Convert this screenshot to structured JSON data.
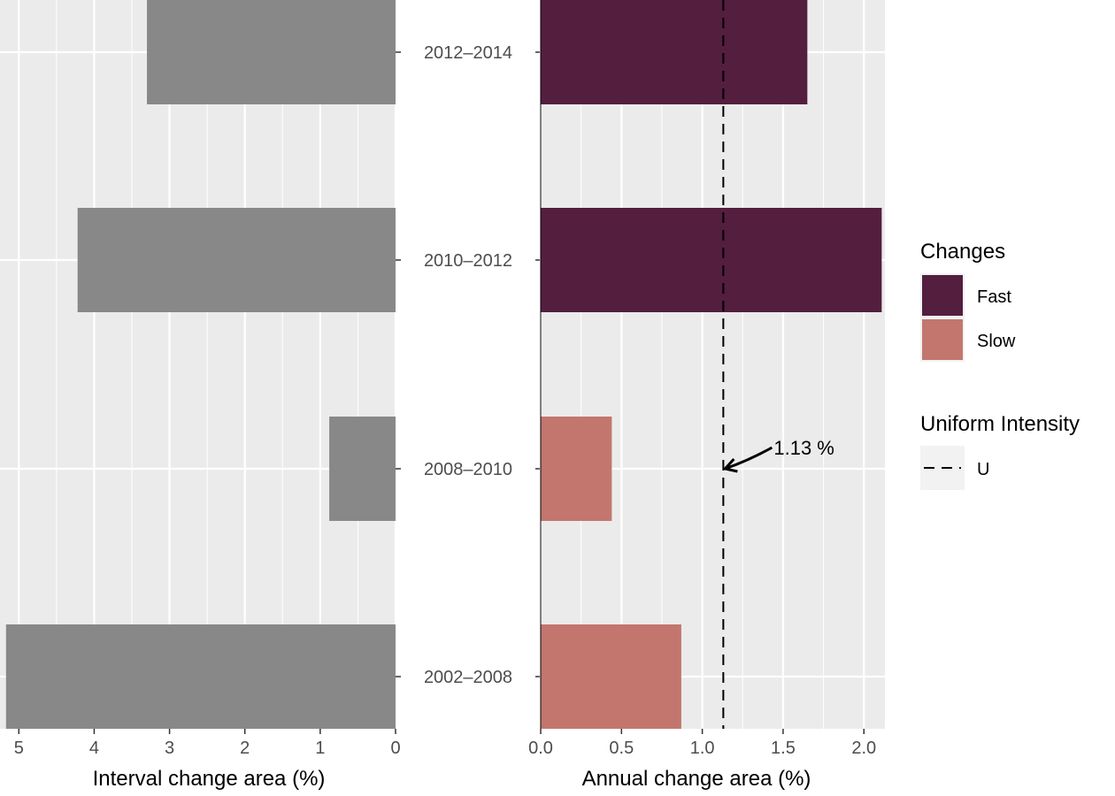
{
  "chart_data": [
    {
      "type": "bar",
      "orientation": "horizontal",
      "x_reversed": true,
      "categories": [
        "2002–2008",
        "2008–2010",
        "2010–2012",
        "2012–2014"
      ],
      "values": [
        5.17,
        0.88,
        4.22,
        3.3
      ],
      "xlabel": "Interval change area (%)",
      "ylabel": "",
      "xlim": [
        5.25,
        0
      ],
      "xticks": [
        5,
        4,
        3,
        2,
        1,
        0
      ],
      "xtick_labels": [
        "5",
        "4",
        "3",
        "2",
        "1",
        "0"
      ],
      "bar_color": "#888888",
      "grid": true
    },
    {
      "type": "bar",
      "orientation": "horizontal",
      "categories": [
        "2002–2008",
        "2008–2010",
        "2010–2012",
        "2012–2014"
      ],
      "values": [
        0.87,
        0.44,
        2.11,
        1.65
      ],
      "groups": [
        "Slow",
        "Slow",
        "Fast",
        "Fast"
      ],
      "xlabel": "Annual change area (%)",
      "ylabel": "",
      "xlim": [
        0,
        2.13
      ],
      "xticks": [
        0,
        0.5,
        1,
        1.5,
        2
      ],
      "xtick_labels": [
        "0.0",
        "0.5",
        "1.0",
        "1.5",
        "2.0"
      ],
      "grid": true,
      "reference_line": {
        "value": 1.13,
        "style": "dashed",
        "label": "U",
        "annotation": "1.13 %"
      }
    }
  ],
  "y_tick_labels": [
    "2012–2014",
    "2010–2012",
    "2008–2010",
    "2002–2008"
  ],
  "legend": {
    "placement": "right",
    "changes_title": "Changes",
    "changes_items": [
      {
        "label": "Fast",
        "color": "#541E3F"
      },
      {
        "label": "Slow",
        "color": "#C2766E"
      }
    ],
    "uniform_title": "Uniform Intensity",
    "uniform_label": "U"
  },
  "colors": {
    "panel_bg": "#EBEBEB",
    "grid": "#FFFFFF",
    "left_bar": "#888888",
    "fast": "#541E3F",
    "slow": "#C2766E"
  }
}
